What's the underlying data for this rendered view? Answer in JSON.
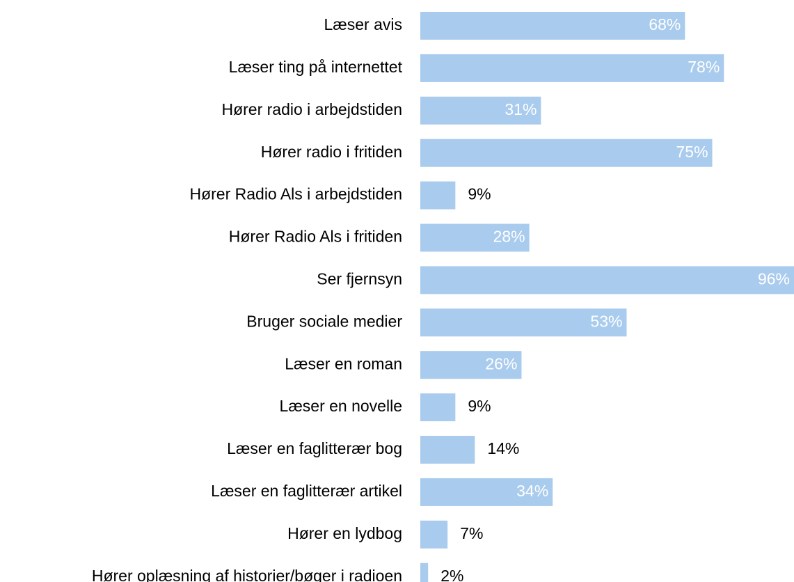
{
  "chart_data": {
    "type": "bar",
    "orientation": "horizontal",
    "categories": [
      "Læser avis",
      "Læser ting på internettet",
      "Hører radio i arbejdstiden",
      "Hører radio i fritiden",
      "Hører Radio Als i arbejdstiden",
      "Hører Radio Als i fritiden",
      "Ser fjernsyn",
      "Bruger sociale medier",
      "Læser en roman",
      "Læser en novelle",
      "Læser en faglitterær bog",
      "Læser en faglitterær artikel",
      "Hører en lydbog",
      "Hører oplæsning af historier/bøger i radioen"
    ],
    "values": [
      68,
      78,
      31,
      75,
      9,
      28,
      96,
      53,
      26,
      9,
      14,
      34,
      7,
      2
    ],
    "value_labels": [
      "68%",
      "78%",
      "31%",
      "75%",
      "9%",
      "28%",
      "96%",
      "53%",
      "26%",
      "9%",
      "14%",
      "34%",
      "7%",
      "2%"
    ],
    "color": "#a9cbed"
  }
}
